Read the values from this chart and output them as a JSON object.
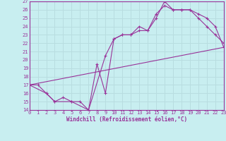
{
  "xlabel": "Windchill (Refroidissement éolien,°C)",
  "bg_color": "#c8eef0",
  "grid_color": "#b8dde0",
  "line_color": "#993399",
  "xlim": [
    0,
    23
  ],
  "ylim": [
    14,
    27
  ],
  "xticks": [
    0,
    1,
    2,
    3,
    4,
    5,
    6,
    7,
    8,
    9,
    10,
    11,
    12,
    13,
    14,
    15,
    16,
    17,
    18,
    19,
    20,
    21,
    22,
    23
  ],
  "yticks": [
    14,
    15,
    16,
    17,
    18,
    19,
    20,
    21,
    22,
    23,
    24,
    25,
    26,
    27
  ],
  "line1_x": [
    0,
    1,
    2,
    3,
    4,
    5,
    6,
    7,
    8,
    9,
    10,
    11,
    12,
    13,
    14,
    15,
    16,
    17,
    18,
    19,
    20,
    21,
    22,
    23
  ],
  "line1_y": [
    17,
    17,
    16,
    15,
    15.5,
    15,
    15,
    14,
    19.5,
    16,
    22.5,
    23,
    23,
    24,
    23.5,
    25,
    27,
    26,
    26,
    26,
    25,
    24,
    23,
    22
  ],
  "line2_x": [
    0,
    2,
    3,
    5,
    7,
    9,
    10,
    11,
    12,
    13,
    14,
    15,
    16,
    17,
    18,
    19,
    20,
    21,
    22,
    23
  ],
  "line2_y": [
    17,
    16,
    15,
    15,
    14,
    20.5,
    22.5,
    23,
    23,
    23.5,
    23.5,
    25.5,
    26.5,
    26,
    26,
    26,
    25.5,
    25,
    24,
    21.5
  ],
  "line3_x": [
    0,
    23
  ],
  "line3_y": [
    17,
    21.5
  ]
}
